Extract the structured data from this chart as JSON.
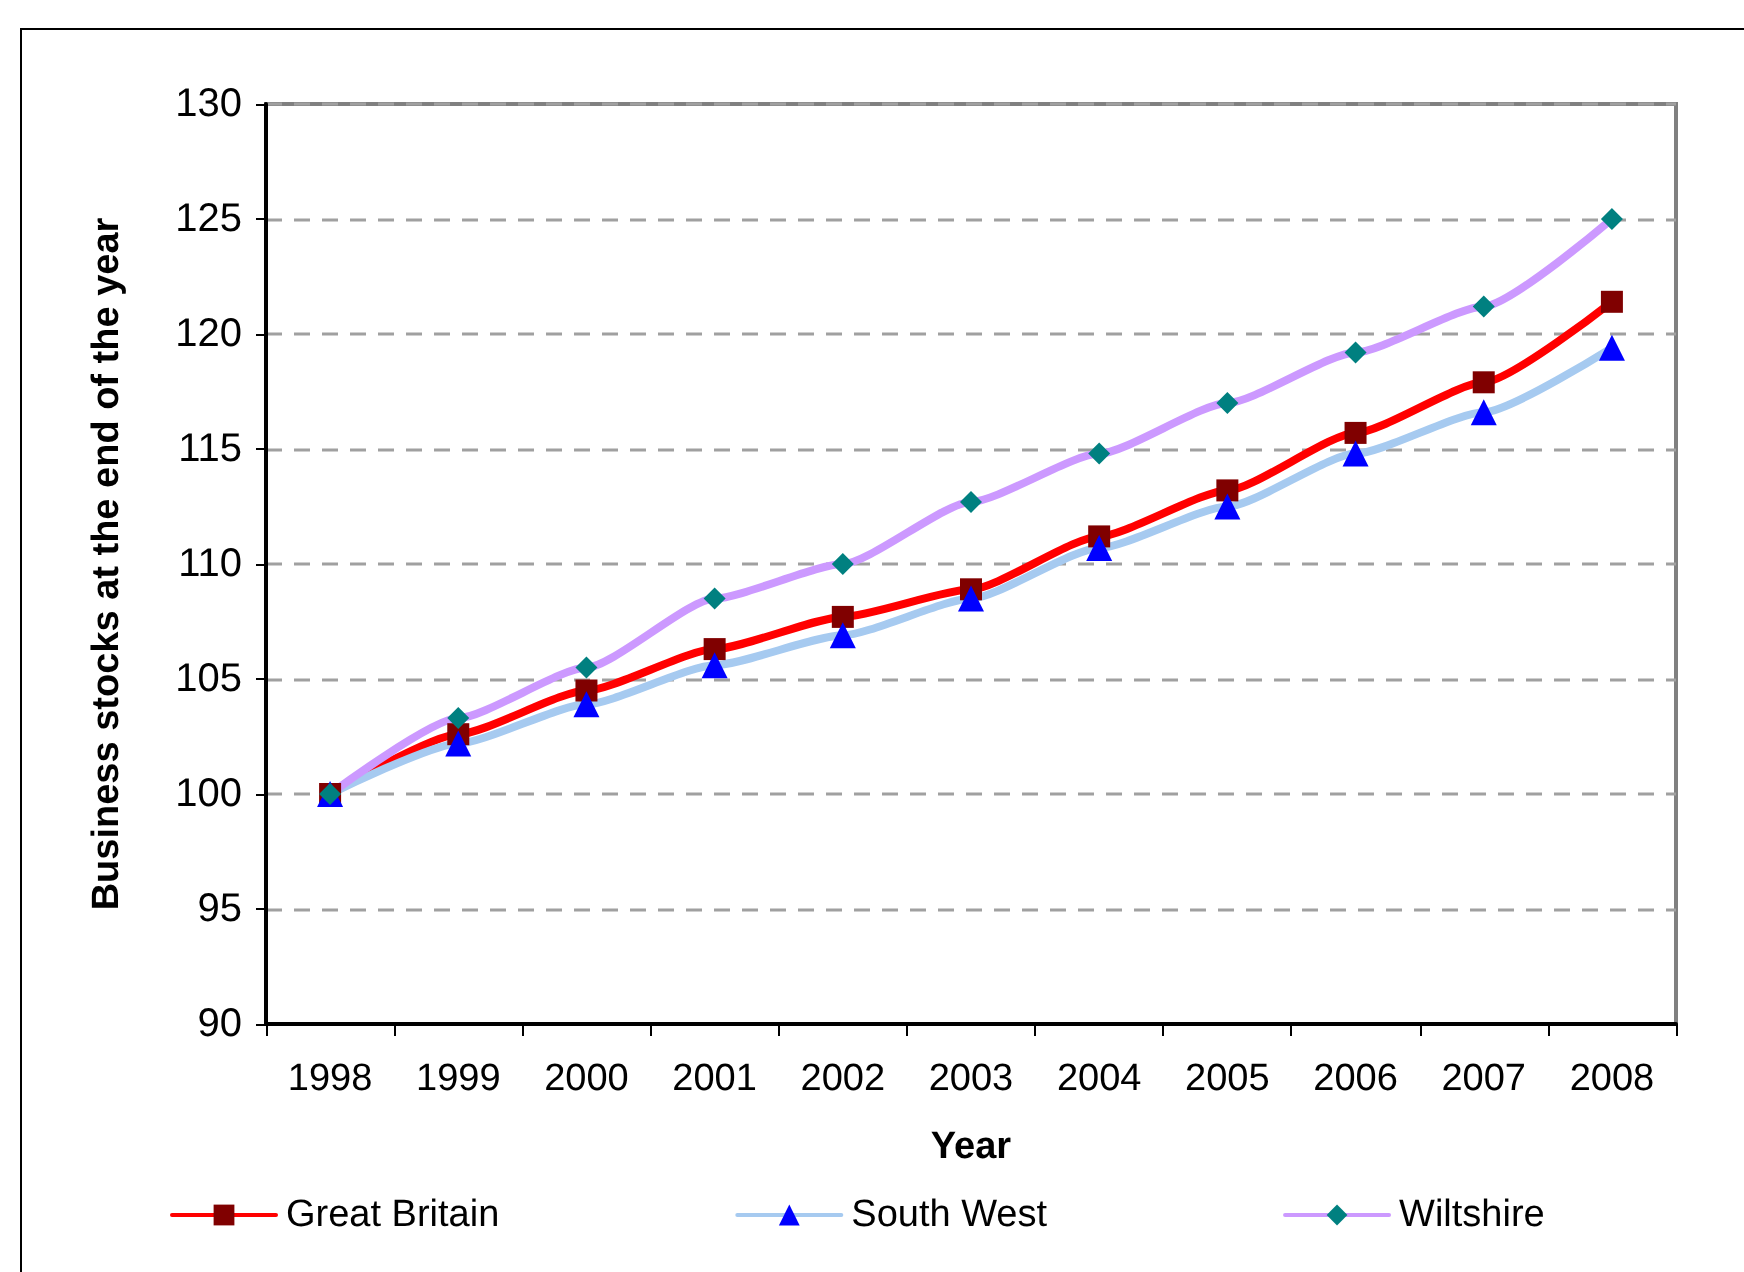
{
  "chart_data": {
    "type": "line",
    "xlabel": "Year",
    "ylabel": "Business stocks at the end of the year",
    "categories": [
      "1998",
      "1999",
      "2000",
      "2001",
      "2002",
      "2003",
      "2004",
      "2005",
      "2006",
      "2007",
      "2008"
    ],
    "series": [
      {
        "name": "Great Britain",
        "color": "#ff0000",
        "marker": "square",
        "colors": [
          "#800000",
          "#800000",
          "#800000",
          "#800000",
          "#800000",
          "#800000",
          "#800000",
          "#800000",
          "#800000",
          "#800000",
          "#800000"
        ],
        "values": [
          100,
          102.6,
          104.5,
          106.3,
          107.7,
          108.9,
          111.2,
          113.2,
          115.7,
          117.9,
          121.4
        ]
      },
      {
        "name": "South West",
        "color": "#a6caf0",
        "marker": "triangle",
        "colors": [
          "#0000ff",
          "#0000ff",
          "#0000ff",
          "#0000ff",
          "#0000ff",
          "#0000ff",
          "#0000ff",
          "#0000ff",
          "#0000ff",
          "#0000ff",
          "#0000ff"
        ],
        "values": [
          100,
          102.2,
          103.9,
          105.6,
          106.9,
          108.5,
          110.7,
          112.5,
          114.8,
          116.6,
          119.4
        ]
      },
      {
        "name": "Wiltshire",
        "color": "#cc99ff",
        "marker": "diamond",
        "colors": [
          "#008080",
          "#008080",
          "#008080",
          "#008080",
          "#008080",
          "#008080",
          "#008080",
          "#008080",
          "#008080",
          "#008080",
          "#008080"
        ],
        "values": [
          100,
          103.3,
          105.5,
          108.5,
          110,
          112.7,
          114.8,
          117,
          119.2,
          121.2,
          125
        ]
      }
    ],
    "ylim": [
      90,
      130
    ],
    "yticks": [
      90,
      95,
      100,
      105,
      110,
      115,
      120,
      125,
      130
    ],
    "grid": "y",
    "legend": "bottom"
  }
}
